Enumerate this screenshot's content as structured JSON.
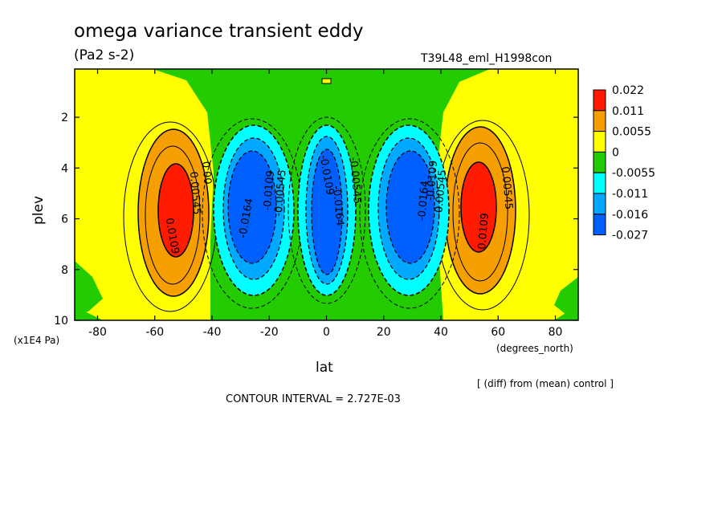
{
  "chart_data": {
    "type": "heatmap",
    "title": "omega variance transient eddy",
    "units": "(Pa2 s-2)",
    "run_label": "T39L48_eml_H1998con",
    "xlabel": "lat",
    "xunits": "(degrees_north)",
    "ylabel": "plev",
    "yunits": "(x1E4 Pa)",
    "xlim": [
      -88,
      88
    ],
    "ylim": [
      10,
      0.1
    ],
    "x_ticks": [
      -80,
      -60,
      -40,
      -20,
      0,
      20,
      40,
      60,
      80
    ],
    "x_tick_labels": [
      "-80",
      "-60",
      "-40",
      "-20",
      "0",
      "20",
      "40",
      "60",
      "80"
    ],
    "y_ticks": [
      2,
      4,
      6,
      8,
      10
    ],
    "y_tick_labels": [
      "2",
      "4",
      "6",
      "8",
      "10"
    ],
    "colorbar": {
      "boundaries": [
        "0.022",
        "0.011",
        "0.0055",
        "0",
        "-0.0055",
        "-0.011",
        "-0.016",
        "-0.027"
      ],
      "colors": [
        "#ff1a00",
        "#f5a000",
        "#ffff00",
        "#22cc00",
        "#00ffff",
        "#00a8ff",
        "#0060ff"
      ]
    },
    "features": [
      {
        "sign": "positive",
        "lat": -54,
        "plev": 5.6,
        "peak": "0.0109"
      },
      {
        "sign": "positive",
        "lat": 54,
        "plev": 5.6,
        "peak": "0.0109"
      },
      {
        "sign": "negative",
        "lat": -30,
        "plev": 5.2,
        "peak": "-0.0164"
      },
      {
        "sign": "negative",
        "lat": 0,
        "plev": 5.5,
        "peak": "-0.0164"
      },
      {
        "sign": "negative",
        "lat": 30,
        "plev": 5.2,
        "peak": "-0.0164"
      }
    ],
    "contour_labels": [
      {
        "text": "0.0109",
        "lat": -55,
        "plev": 6.7,
        "rot": 80
      },
      {
        "text": "0.00545",
        "lat": -47,
        "plev": 5.0,
        "rot": 85
      },
      {
        "text": "0.00",
        "lat": -43,
        "plev": 4.2,
        "rot": 85
      },
      {
        "text": "-0.0164",
        "lat": -27,
        "plev": 6.0,
        "rot": -80
      },
      {
        "text": "-0.0109",
        "lat": -19,
        "plev": 4.9,
        "rot": -85
      },
      {
        "text": "-0.00545",
        "lat": -15,
        "plev": 5.0,
        "rot": -85
      },
      {
        "text": "-0.0109",
        "lat": -1,
        "plev": 4.3,
        "rot": 80
      },
      {
        "text": "-0.0164",
        "lat": 3,
        "plev": 5.5,
        "rot": 85
      },
      {
        "text": "-0.00545",
        "lat": 9,
        "plev": 4.5,
        "rot": 85
      },
      {
        "text": "-0.0164",
        "lat": 35,
        "plev": 5.3,
        "rot": -85
      },
      {
        "text": "-0.0109",
        "lat": 38,
        "plev": 4.5,
        "rot": -85
      },
      {
        "text": "-0.00545",
        "lat": 41,
        "plev": 5.0,
        "rot": -85
      },
      {
        "text": "0.0109",
        "lat": 56,
        "plev": 6.5,
        "rot": -85
      },
      {
        "text": "0.00545",
        "lat": 62,
        "plev": 4.8,
        "rot": 85
      }
    ],
    "grid": false
  },
  "annotations": {
    "diff_note": "[ (diff) from (mean) control ]",
    "contour_interval": "CONTOUR INTERVAL = 2.727E-03"
  }
}
